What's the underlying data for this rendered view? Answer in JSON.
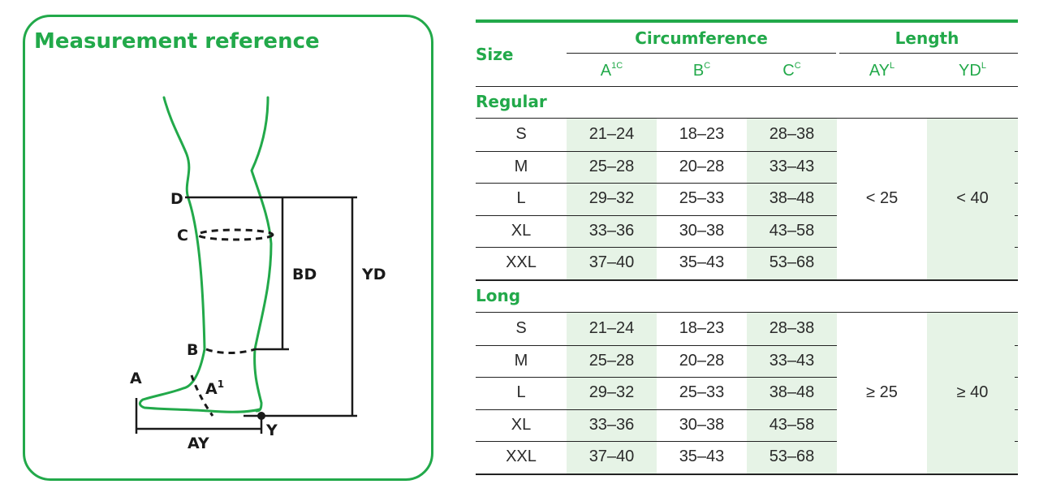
{
  "diagram": {
    "title": "Measurement reference",
    "labels": {
      "d": "D",
      "c": "C",
      "b": "B",
      "a": "A",
      "a1": "A",
      "a1_sup": "1",
      "y": "Y",
      "ay": "AY",
      "bd": "BD",
      "yd": "YD"
    }
  },
  "table": {
    "size_header": "Size",
    "circumference_header": "Circumference",
    "length_header": "Length",
    "columns": [
      {
        "label": "A",
        "sup": "1C"
      },
      {
        "label": "B",
        "sup": "C"
      },
      {
        "label": "C",
        "sup": "C"
      },
      {
        "label": "AY",
        "sup": "L"
      },
      {
        "label": "YD",
        "sup": "L"
      }
    ],
    "groups": [
      {
        "name": "Regular",
        "ay": "< 25",
        "yd": "< 40",
        "rows": [
          {
            "size": "S",
            "a": "21–24",
            "b": "18–23",
            "c": "28–38"
          },
          {
            "size": "M",
            "a": "25–28",
            "b": "20–28",
            "c": "33–43"
          },
          {
            "size": "L",
            "a": "29–32",
            "b": "25–33",
            "c": "38–48"
          },
          {
            "size": "XL",
            "a": "33–36",
            "b": "30–38",
            "c": "43–58"
          },
          {
            "size": "XXL",
            "a": "37–40",
            "b": "35–43",
            "c": "53–68"
          }
        ]
      },
      {
        "name": "Long",
        "ay": "≥ 25",
        "yd": "≥ 40",
        "rows": [
          {
            "size": "S",
            "a": "21–24",
            "b": "18–23",
            "c": "28–38"
          },
          {
            "size": "M",
            "a": "25–28",
            "b": "20–28",
            "c": "33–43"
          },
          {
            "size": "L",
            "a": "29–32",
            "b": "25–33",
            "c": "38–48"
          },
          {
            "size": "XL",
            "a": "33–36",
            "b": "30–38",
            "c": "43–58"
          },
          {
            "size": "XXL",
            "a": "37–40",
            "b": "35–43",
            "c": "53–68"
          }
        ]
      }
    ]
  }
}
